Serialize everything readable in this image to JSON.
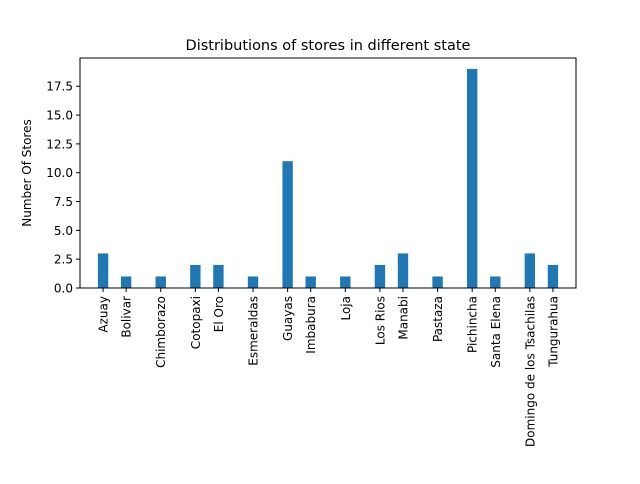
{
  "chart_data": {
    "type": "bar",
    "title": "Distributions of stores in different state",
    "xlabel": "",
    "ylabel": "Number Of Stores",
    "categories": [
      "Azuay",
      "Bolivar",
      "Chimborazo",
      "Cotopaxi",
      "El Oro",
      "Esmeraldas",
      "Guayas",
      "Imbabura",
      "Loja",
      "Los Rios",
      "Manabi",
      "Pastaza",
      "Pichincha",
      "Santa Elena",
      "Domingo de los Tsachilas",
      "Tungurahua"
    ],
    "x_positions": [
      1,
      2,
      3.5,
      5,
      6,
      7.5,
      9,
      10,
      11.5,
      13,
      14,
      15.5,
      17,
      18,
      19.5,
      20.5
    ],
    "values": [
      3,
      1,
      1,
      2,
      2,
      1,
      11,
      1,
      1,
      2,
      3,
      1,
      19,
      1,
      3,
      2
    ],
    "yticks": [
      0,
      2.5,
      5,
      7.5,
      10,
      12.5,
      15,
      17.5
    ],
    "ytick_labels": [
      "0.0",
      "2.5",
      "5.0",
      "7.5",
      "10.0",
      "12.5",
      "15.0",
      "17.5"
    ],
    "ylim": [
      0,
      19.95
    ],
    "xlim": [
      0,
      21.5
    ],
    "bar_color": "#1f77b4",
    "grid": false,
    "legend": "none"
  }
}
